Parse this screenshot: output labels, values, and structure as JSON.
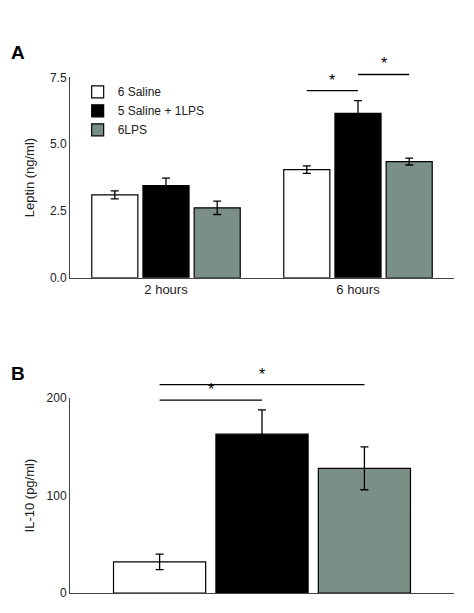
{
  "chart_data": [
    {
      "type": "bar",
      "title": "A",
      "categories": [
        "2 hours",
        "6 hours"
      ],
      "series": [
        {
          "name": "6 Saline",
          "color": "#ffffff",
          "values": [
            3.1,
            4.05
          ],
          "errors": [
            0.15,
            0.14
          ]
        },
        {
          "name": "5 Saline + 1LPS",
          "color": "#000000",
          "values": [
            3.45,
            6.15
          ],
          "errors": [
            0.28,
            0.48
          ]
        },
        {
          "name": "6LPS",
          "color": "#7a8f85",
          "values": [
            2.62,
            4.35
          ],
          "errors": [
            0.25,
            0.13
          ]
        }
      ],
      "ylabel": "Leptin (ng/ml)",
      "ylim": [
        0,
        7.5
      ],
      "yticks": [
        {
          "value": 0.0,
          "label": "0.0"
        },
        2.5,
        {
          "value": 5.0,
          "label": "5.0"
        },
        7.5
      ],
      "grid": false,
      "legend": "upper left",
      "annotations": [
        {
          "text": "*",
          "category": "6 hours",
          "from": "6 Saline",
          "to": "5 Saline + 1LPS"
        },
        {
          "text": "*",
          "category": "6 hours",
          "from": "5 Saline + 1LPS",
          "to": "6LPS"
        }
      ]
    },
    {
      "type": "bar",
      "title": "B",
      "series": [
        {
          "name": "6 Saline",
          "color": "#ffffff",
          "values": [
            32
          ],
          "errors": [
            8
          ]
        },
        {
          "name": "5 Saline + 1LPS",
          "color": "#000000",
          "values": [
            163
          ],
          "errors": [
            25
          ]
        },
        {
          "name": "6LPS",
          "color": "#7a8f85",
          "values": [
            128
          ],
          "errors": [
            22
          ]
        }
      ],
      "ylabel": "IL-10 (pg/ml)",
      "ylim": [
        0,
        200
      ],
      "yticks": [
        0,
        100,
        200
      ],
      "grid": false,
      "tick_labels": "y",
      "annotations": [
        {
          "text": "*",
          "from": "6 Saline",
          "to": "5 Saline + 1LPS"
        },
        {
          "text": "*",
          "from": "6 Saline",
          "to": "6LPS"
        }
      ]
    }
  ]
}
